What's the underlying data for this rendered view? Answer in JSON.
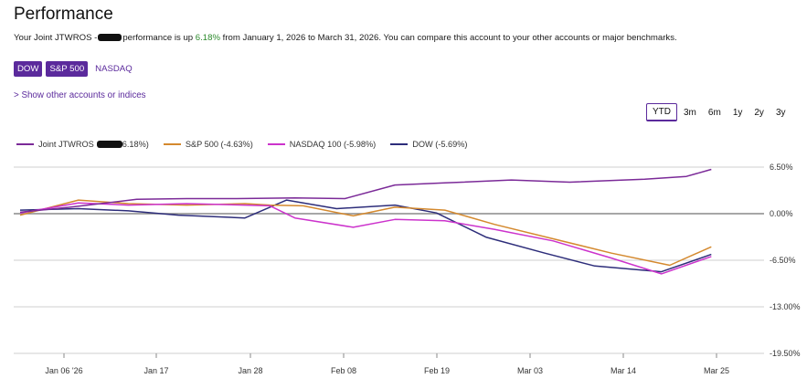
{
  "page": {
    "title": "Performance",
    "summary_prefix": "Your Joint JTWROS -",
    "summary_mid": "performance is up ",
    "summary_gain": "6.18%",
    "summary_suffix": " from January 1, 2026 to March 31, 2026. You can compare this account to your other accounts or major benchmarks.",
    "show_other": "> Show other accounts or indices"
  },
  "benchmarks": [
    {
      "label": "DOW",
      "active": true
    },
    {
      "label": "S&P 500",
      "active": true
    },
    {
      "label": "NASDAQ",
      "active": false
    }
  ],
  "ranges": [
    {
      "label": "YTD",
      "active": true
    },
    {
      "label": "3m",
      "active": false
    },
    {
      "label": "6m",
      "active": false
    },
    {
      "label": "1y",
      "active": false
    },
    {
      "label": "2y",
      "active": false
    },
    {
      "label": "3y",
      "active": false
    }
  ],
  "legend": [
    {
      "name_prefix": "Joint JTWROS",
      "name_suffix": "6.18%)",
      "color": "#7b2a98"
    },
    {
      "name_prefix": "S&P 500 (-4.63%)",
      "name_suffix": "",
      "color": "#d4892e"
    },
    {
      "name_prefix": "NASDAQ 100 (-5.98%)",
      "name_suffix": "",
      "color": "#cc33cc"
    },
    {
      "name_prefix": "DOW (-5.69%)",
      "name_suffix": "",
      "color": "#2d2d7a"
    }
  ],
  "chart_data": {
    "type": "line",
    "x_ticks": [
      "Jan 06 '26",
      "Jan 17",
      "Jan 28",
      "Feb 08",
      "Feb 19",
      "Mar 03",
      "Mar 14",
      "Mar 25"
    ],
    "y_ticks": [
      "6.50%",
      "0.00%",
      "-6.50%",
      "-13.00%",
      "-19.50%"
    ],
    "ylim": [
      -19.5,
      6.5
    ],
    "x_range_days": [
      0,
      89
    ],
    "series": [
      {
        "name": "Joint JTWROS",
        "color": "#7b2a98",
        "points": [
          [
            0,
            0.2
          ],
          [
            6,
            0.9
          ],
          [
            14,
            2.0
          ],
          [
            20,
            2.1
          ],
          [
            26,
            2.1
          ],
          [
            33,
            2.2
          ],
          [
            39,
            2.1
          ],
          [
            45,
            4.0
          ],
          [
            51,
            4.3
          ],
          [
            59,
            4.7
          ],
          [
            66,
            4.4
          ],
          [
            75,
            4.8
          ],
          [
            80,
            5.2
          ],
          [
            83,
            6.18
          ]
        ]
      },
      {
        "name": "S&P 500",
        "color": "#d4892e",
        "points": [
          [
            0,
            -0.2
          ],
          [
            7,
            1.9
          ],
          [
            13,
            1.4
          ],
          [
            20,
            1.2
          ],
          [
            27,
            1.4
          ],
          [
            30,
            1.2
          ],
          [
            34,
            1.1
          ],
          [
            40,
            -0.3
          ],
          [
            45,
            0.9
          ],
          [
            51,
            0.5
          ],
          [
            57,
            -1.5
          ],
          [
            64,
            -3.5
          ],
          [
            71,
            -5.5
          ],
          [
            78,
            -7.2
          ],
          [
            83,
            -4.63
          ]
        ]
      },
      {
        "name": "NASDAQ 100",
        "color": "#cc33cc",
        "points": [
          [
            0,
            0.1
          ],
          [
            7,
            1.5
          ],
          [
            13,
            1.2
          ],
          [
            20,
            1.4
          ],
          [
            27,
            1.2
          ],
          [
            30,
            1.1
          ],
          [
            33,
            -0.6
          ],
          [
            40,
            -1.9
          ],
          [
            45,
            -0.8
          ],
          [
            51,
            -1.0
          ],
          [
            57,
            -2.2
          ],
          [
            64,
            -3.8
          ],
          [
            71,
            -6.2
          ],
          [
            77,
            -8.4
          ],
          [
            83,
            -5.98
          ]
        ]
      },
      {
        "name": "DOW",
        "color": "#2d2d7a",
        "points": [
          [
            0,
            0.5
          ],
          [
            7,
            0.7
          ],
          [
            13,
            0.4
          ],
          [
            19,
            -0.2
          ],
          [
            27,
            -0.6
          ],
          [
            32,
            1.9
          ],
          [
            38,
            0.7
          ],
          [
            45,
            1.2
          ],
          [
            50,
            0.1
          ],
          [
            56,
            -3.3
          ],
          [
            63,
            -5.5
          ],
          [
            69,
            -7.3
          ],
          [
            74,
            -7.8
          ],
          [
            77,
            -8.1
          ],
          [
            83,
            -5.69
          ]
        ]
      }
    ]
  }
}
